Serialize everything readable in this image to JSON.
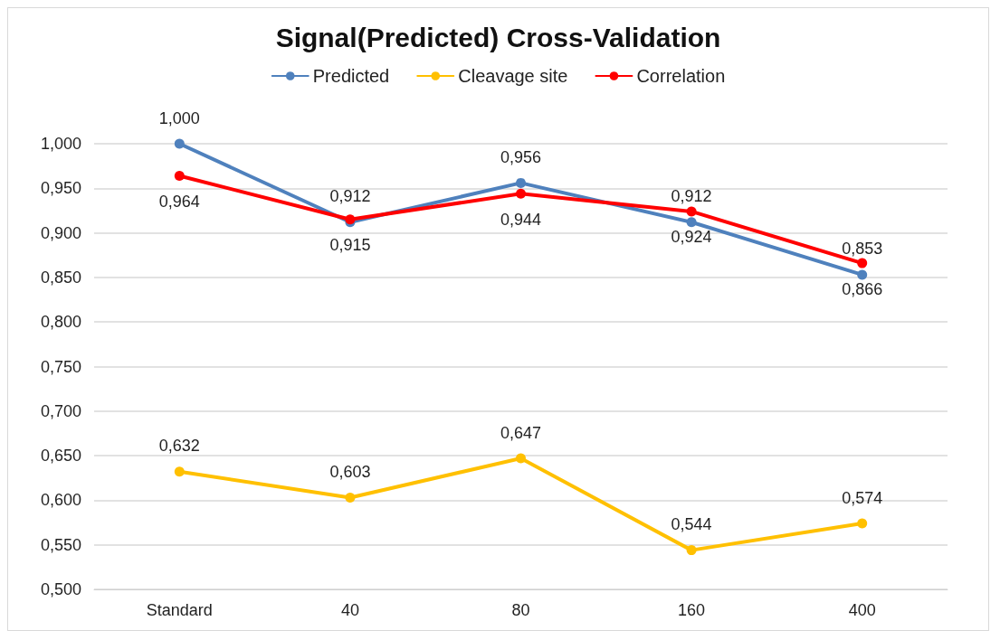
{
  "chart_data": {
    "type": "line",
    "title": "Signal(Predicted) Cross-Validation",
    "categories": [
      "Standard",
      "40",
      "80",
      "160",
      "400"
    ],
    "series": [
      {
        "name": "Predicted",
        "color": "#4f81bd",
        "values": [
          1.0,
          0.912,
          0.956,
          0.912,
          0.853
        ],
        "value_labels": [
          "1,000",
          "0,912",
          "0,956",
          "0,912",
          "0,853"
        ]
      },
      {
        "name": "Cleavage site",
        "color": "#ffc000",
        "values": [
          0.632,
          0.603,
          0.647,
          0.544,
          0.574
        ],
        "value_labels": [
          "0,632",
          "0,603",
          "0,647",
          "0,544",
          "0,574"
        ]
      },
      {
        "name": "Correlation",
        "color": "#ff0000",
        "values": [
          0.964,
          0.915,
          0.944,
          0.924,
          0.866
        ],
        "value_labels": [
          "0,964",
          "0,915",
          "0,944",
          "0,924",
          "0,866"
        ]
      }
    ],
    "ylim": [
      0.5,
      1.0
    ],
    "yticks": [
      {
        "value": 0.5,
        "label": "0,500"
      },
      {
        "value": 0.55,
        "label": "0,550"
      },
      {
        "value": 0.6,
        "label": "0,600"
      },
      {
        "value": 0.65,
        "label": "0,650"
      },
      {
        "value": 0.7,
        "label": "0,700"
      },
      {
        "value": 0.75,
        "label": "0,750"
      },
      {
        "value": 0.8,
        "label": "0,800"
      },
      {
        "value": 0.85,
        "label": "0,850"
      },
      {
        "value": 0.9,
        "label": "0,900"
      },
      {
        "value": 0.95,
        "label": "0,950"
      },
      {
        "value": 1.0,
        "label": "1,000"
      }
    ],
    "grid": "y",
    "legend": "top",
    "marker": "circle",
    "line_style": "solid"
  }
}
